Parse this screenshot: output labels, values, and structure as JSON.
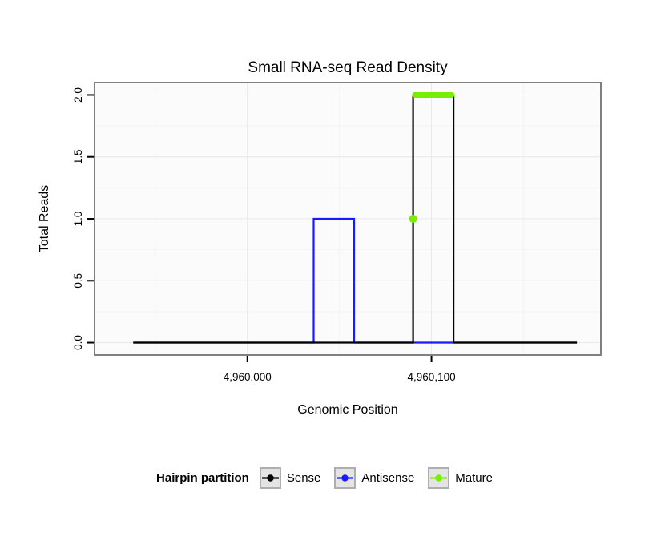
{
  "colors": {
    "panel_bg": "#fbfbfb",
    "grid_major": "#e8e8e8",
    "grid_minor": "#f4f4f4",
    "panel_border": "#808080",
    "axis_tick": "#000000",
    "legend_key_bg": "#e4e4e4",
    "legend_key_border": "#aeaeae"
  },
  "chart_data": {
    "type": "line",
    "title": "Small RNA-seq Read Density",
    "xlabel": "Genomic Position",
    "ylabel": "Total Reads",
    "legend_title": "Hairpin partition",
    "legend_position": "bottom",
    "grid": true,
    "xlim": [
      4959917,
      4960192
    ],
    "ylim": [
      -0.1,
      2.1
    ],
    "x_ticks": [
      {
        "value": 4960000,
        "label": "4,960,000"
      },
      {
        "value": 4960100,
        "label": "4,960,100"
      }
    ],
    "y_ticks": [
      {
        "value": 0,
        "label": "0.0"
      },
      {
        "value": 0.5,
        "label": "0.5"
      },
      {
        "value": 1,
        "label": "1.0"
      },
      {
        "value": 1.5,
        "label": "1.5"
      },
      {
        "value": 2,
        "label": "2.0"
      }
    ],
    "series": [
      {
        "name": "Sense",
        "color": "#000000",
        "z": 1,
        "points": [
          [
            4959938,
            0
          ],
          [
            4960090,
            0
          ],
          [
            4960090,
            2
          ],
          [
            4960112,
            2
          ],
          [
            4960112,
            0
          ],
          [
            4960179,
            0
          ]
        ]
      },
      {
        "name": "Antisense",
        "color": "#1a1aff",
        "z": 0,
        "points": [
          [
            4959938,
            0
          ],
          [
            4960036,
            0
          ],
          [
            4960036,
            1
          ],
          [
            4960058,
            1
          ],
          [
            4960058,
            0
          ],
          [
            4960179,
            0
          ]
        ]
      },
      {
        "name": "Mature",
        "color": "#76ee00",
        "z": 2,
        "segments": [
          [
            [
              4960091,
              2
            ],
            [
              4960111,
              2
            ]
          ]
        ],
        "markers": [
          [
            4960090,
            1
          ]
        ]
      }
    ]
  }
}
